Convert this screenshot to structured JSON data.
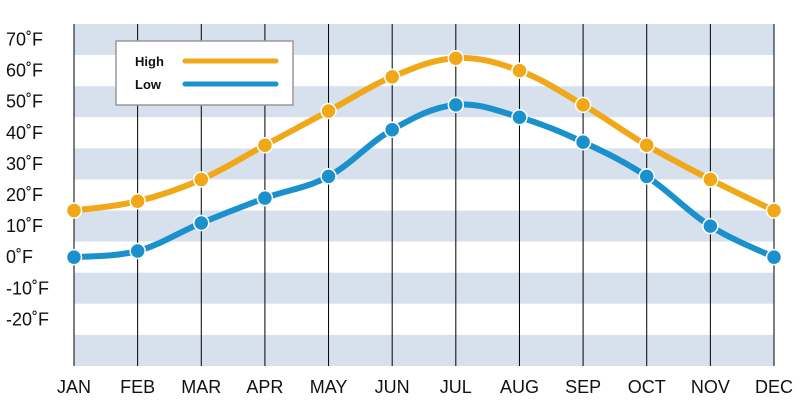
{
  "chart_data": {
    "type": "line",
    "title": "",
    "xlabel": "",
    "ylabel": "",
    "categories": [
      "JAN",
      "FEB",
      "MAR",
      "APR",
      "MAY",
      "JUN",
      "JUL",
      "AUG",
      "SEP",
      "OCT",
      "NOV",
      "DEC"
    ],
    "y_ticks": [
      "-20˚F",
      "-10˚F",
      "0˚F",
      "10˚F",
      "20˚F",
      "30˚F",
      "40˚F",
      "50˚F",
      "60˚F",
      "70˚F"
    ],
    "y_tick_values": [
      -20,
      -10,
      0,
      10,
      20,
      30,
      40,
      50,
      60,
      70
    ],
    "ylim": [
      -35,
      75
    ],
    "grid": "alternating horizontal bands, vertical lines at each month",
    "legend_placement": "top-left",
    "series": [
      {
        "name": "High",
        "color": "#f0a818",
        "values": [
          15,
          18,
          25,
          36,
          47,
          58,
          64,
          60,
          49,
          36,
          25,
          15
        ]
      },
      {
        "name": "Low",
        "color": "#1a90cc",
        "values": [
          0,
          2,
          11,
          19,
          26,
          41,
          49,
          45,
          37,
          26,
          10,
          0
        ]
      }
    ],
    "colors": {
      "band": "#d7e1ee",
      "band_white": "#ffffff",
      "gridline": "#000000"
    }
  }
}
